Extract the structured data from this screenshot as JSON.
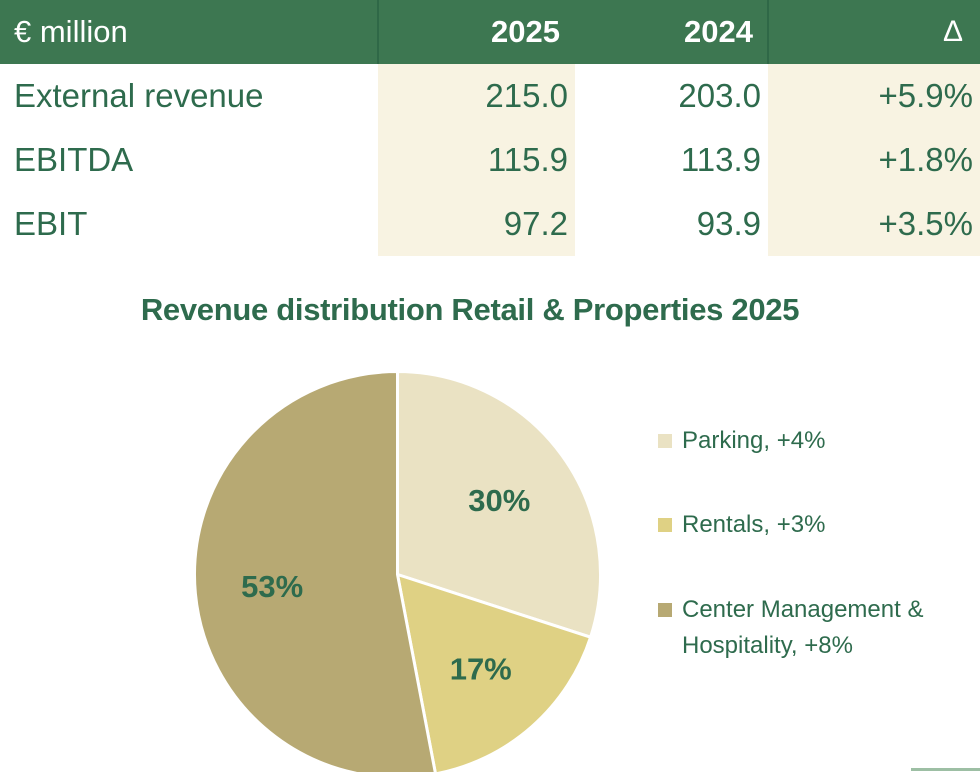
{
  "table": {
    "unit_label": "€ million",
    "columns": [
      "2025",
      "2024",
      "Δ"
    ],
    "rows": [
      {
        "label": "External revenue",
        "v2025": "215.0",
        "v2024": "203.0",
        "delta": "+5.9%"
      },
      {
        "label": "EBITDA",
        "v2025": "115.9",
        "v2024": "113.9",
        "delta": "+1.8%"
      },
      {
        "label": "EBIT",
        "v2025": "97.2",
        "v2024": "93.9",
        "delta": "+3.5%"
      }
    ]
  },
  "chart_data": {
    "type": "pie",
    "title": "Revenue distribution Retail & Properties 2025",
    "start_angle": "12 o'clock",
    "direction": "clockwise",
    "slices": [
      {
        "name": "Parking",
        "legend_label": "Parking, +4%",
        "change": "+4%",
        "value_pct": 30,
        "data_label": "30%",
        "color": "#EAE2C3"
      },
      {
        "name": "Rentals",
        "legend_label": "Rentals, +3%",
        "change": "+3%",
        "value_pct": 17,
        "data_label": "17%",
        "color": "#DFD184"
      },
      {
        "name": "Center Management & Hospitality",
        "legend_label": "Center Management & Hospitality, +8%",
        "change": "+8%",
        "value_pct": 53,
        "data_label": "53%",
        "color": "#B7A973"
      }
    ],
    "legend_position": "right",
    "data_label_color": "#2E6B4D"
  },
  "colors": {
    "header_bg": "#3D7751",
    "header_divider": "#2F6847",
    "header_text": "#FFFFFF",
    "accent_green_text": "#2E6B4D",
    "cream_column_bg": "#F8F3E2",
    "slice_separator": "#FFFFFF",
    "bottom_accent_bar": "#9DBFA4"
  }
}
